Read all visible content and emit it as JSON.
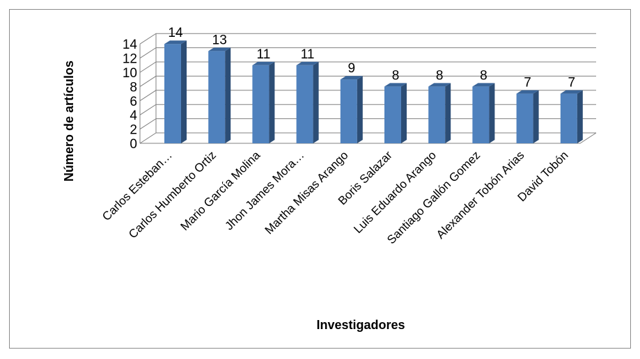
{
  "chart_data": {
    "type": "bar",
    "title": "",
    "xlabel": "Investigadores",
    "ylabel": "Número de artículos",
    "categories": [
      "Carlos Esteban…",
      "Carlos Humberto Ortiz",
      "Mario García Molina",
      "Jhon James Mora…",
      "Martha Misas Arango",
      "Boris Salazar",
      "Luis Eduardo Arango",
      "Santiago Gallón Gomez",
      "Alexander Tobón Arias",
      "David Tobón"
    ],
    "values": [
      14,
      13,
      11,
      11,
      9,
      8,
      8,
      8,
      7,
      7
    ],
    "ylim": [
      0,
      14
    ],
    "yticks": [
      0,
      2,
      4,
      6,
      8,
      10,
      12,
      14
    ],
    "grid": true,
    "legend": "none",
    "style": "3d-column",
    "colors": {
      "bar_front": "#4F81BD",
      "bar_side": "#2C4D75",
      "bar_top": "#3A6599",
      "grid": "#808080"
    }
  }
}
